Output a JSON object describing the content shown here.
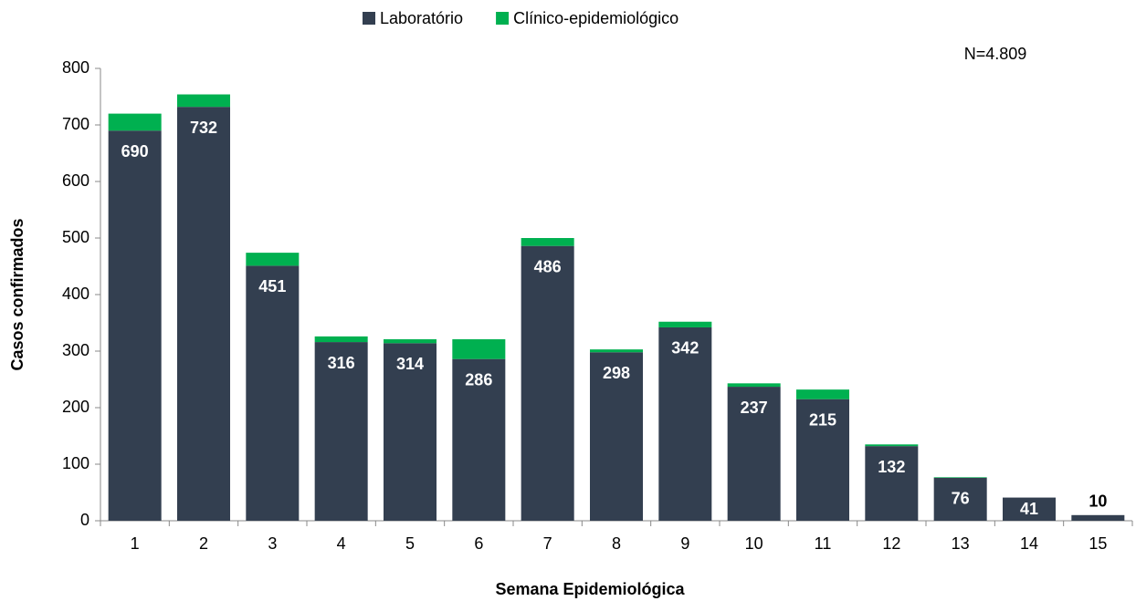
{
  "chart_data": {
    "type": "stacked_bar",
    "annotation": "N=4.809",
    "x_label": "Semana Epidemiológica",
    "y_label": "Casos confirmados",
    "categories": [
      "1",
      "2",
      "3",
      "4",
      "5",
      "6",
      "7",
      "8",
      "9",
      "10",
      "11",
      "12",
      "13",
      "14",
      "15"
    ],
    "series": [
      {
        "name": "Laboratório",
        "color": "#333f50",
        "values": [
          690,
          732,
          451,
          316,
          314,
          286,
          486,
          298,
          342,
          237,
          215,
          132,
          76,
          41,
          10
        ]
      },
      {
        "name": "Clínico-epidemiológico",
        "color": "#00b050",
        "values": [
          30,
          22,
          23,
          10,
          7,
          35,
          14,
          5,
          10,
          6,
          17,
          3,
          1,
          0,
          0
        ]
      }
    ],
    "ylim": [
      0,
      800
    ],
    "yticks": [
      0,
      100,
      200,
      300,
      400,
      500,
      600,
      700,
      800
    ],
    "legend": "top"
  }
}
